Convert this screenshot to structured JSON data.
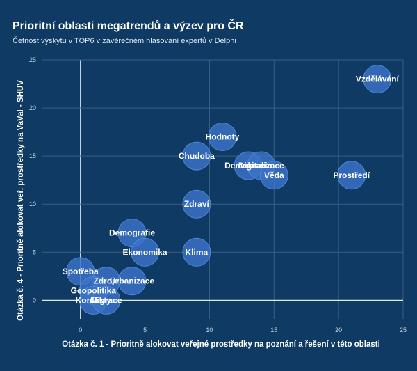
{
  "chart_data": {
    "type": "scatter",
    "title": "Prioritní oblasti megatrendů a výzev pro ČR",
    "subtitle": "Četnost výskytu v TOP6 v závěrečném hlasování expertů v Delphi",
    "xlabel": "Otázka č. 1 - Prioritně alokovat veřejné prostředky na poznání a řešení v této oblasti",
    "ylabel": "Otázka č. 4 - Prioritně alokovat veř. prostředky na VaVaI - SHUV",
    "xlim": [
      -3,
      25
    ],
    "ylim": [
      -2,
      25
    ],
    "xticks": [
      "0",
      "5",
      "10",
      "15",
      "20",
      "25"
    ],
    "yticks": [
      "0",
      "5",
      "10",
      "15",
      "20",
      "25"
    ],
    "grid": true,
    "colors": {
      "bubble": "#3a73c8",
      "background": "#0e3a63"
    },
    "points": [
      {
        "label": "Vzdělávání",
        "x": 23,
        "y": 23
      },
      {
        "label": "Hodnoty",
        "x": 11,
        "y": 17
      },
      {
        "label": "Chudoba",
        "x": 9,
        "y": 15
      },
      {
        "label": "Demokracie",
        "x": 13,
        "y": 14
      },
      {
        "label": "Digitalizace",
        "x": 14,
        "y": 14
      },
      {
        "label": "Věda",
        "x": 15,
        "y": 13
      },
      {
        "label": "Prostředí",
        "x": 21,
        "y": 13
      },
      {
        "label": "Zdraví",
        "x": 9,
        "y": 10
      },
      {
        "label": "Demografie",
        "x": 4,
        "y": 7
      },
      {
        "label": "Ekonomika",
        "x": 5,
        "y": 5
      },
      {
        "label": "Klima",
        "x": 9,
        "y": 5
      },
      {
        "label": "Spotřeba",
        "x": 0,
        "y": 3
      },
      {
        "label": "Zdroje",
        "x": 2,
        "y": 2
      },
      {
        "label": "Urbanizace",
        "x": 4,
        "y": 2
      },
      {
        "label": "Geopolitika",
        "x": 1,
        "y": 1
      },
      {
        "label": "Konflikty",
        "x": 1,
        "y": 0
      },
      {
        "label": "Migrace",
        "x": 2,
        "y": 0
      }
    ]
  }
}
